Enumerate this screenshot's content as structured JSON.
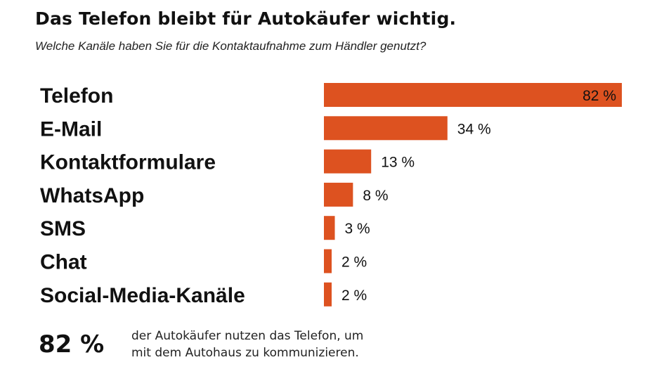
{
  "header": {
    "title": "Das Telefon bleibt für Autokäufer wichtig.",
    "subtitle": "Welche Kanäle haben Sie für die Kontaktaufnahme zum Händler genutzt?"
  },
  "chart_data": {
    "type": "bar",
    "orientation": "horizontal",
    "categories": [
      "Telefon",
      "E-Mail",
      "Kontaktformulare",
      "WhatsApp",
      "SMS",
      "Chat",
      "Social-Media-Kanäle"
    ],
    "values": [
      82,
      34,
      13,
      8,
      3,
      2,
      2
    ],
    "value_labels": [
      "82 %",
      "34 %",
      "13 %",
      "8 %",
      "3 %",
      "2 %",
      "2 %"
    ],
    "unit": "%",
    "xlim": [
      0,
      82
    ],
    "grid": false,
    "legend": "none",
    "bar_color": "#dd5220"
  },
  "footer": {
    "highlight": "82 %",
    "line1": "der Autokäufer nutzen das Telefon, um",
    "line2": "mit dem Autohaus zu kommunizieren."
  }
}
